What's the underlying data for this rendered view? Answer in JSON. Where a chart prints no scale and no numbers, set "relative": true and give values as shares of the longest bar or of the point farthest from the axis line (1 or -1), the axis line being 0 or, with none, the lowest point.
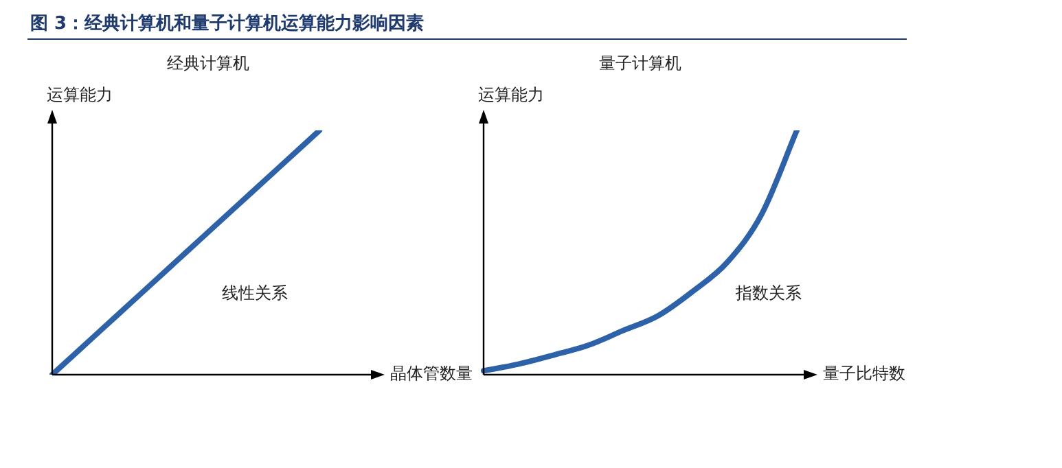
{
  "chart_data": [
    {
      "type": "other",
      "title": "图 3：经典计算机和量子计算机运算能力影响因素"
    },
    {
      "type": "line",
      "title": "经典计算机",
      "xlabel": "晶体管数量",
      "ylabel": "运算能力",
      "relative": true,
      "marker": "none",
      "annotations": [
        "线性关系"
      ],
      "categories": [
        null,
        null,
        null,
        null,
        null,
        null,
        null,
        null
      ],
      "series": [
        {
          "color": "#2e62a8",
          "values": [
            0,
            0.1667,
            0.3333,
            0.5,
            0.6667,
            0.8333,
            1,
            null
          ]
        }
      ]
    },
    {
      "type": "line",
      "title": "量子计算机",
      "xlabel": "量子比特数",
      "ylabel": "运算能力",
      "relative": true,
      "marker": "none",
      "annotations": [
        "指数关系"
      ],
      "categories": [
        null,
        null,
        null,
        null,
        null,
        null,
        null,
        null,
        null,
        null
      ],
      "series": [
        {
          "color": "#2e62a8",
          "values": [
            0.016,
            0.043,
            0.08,
            0.12,
            0.18,
            0.24,
            0.34,
            0.46,
            0.66,
            1
          ]
        }
      ]
    }
  ]
}
